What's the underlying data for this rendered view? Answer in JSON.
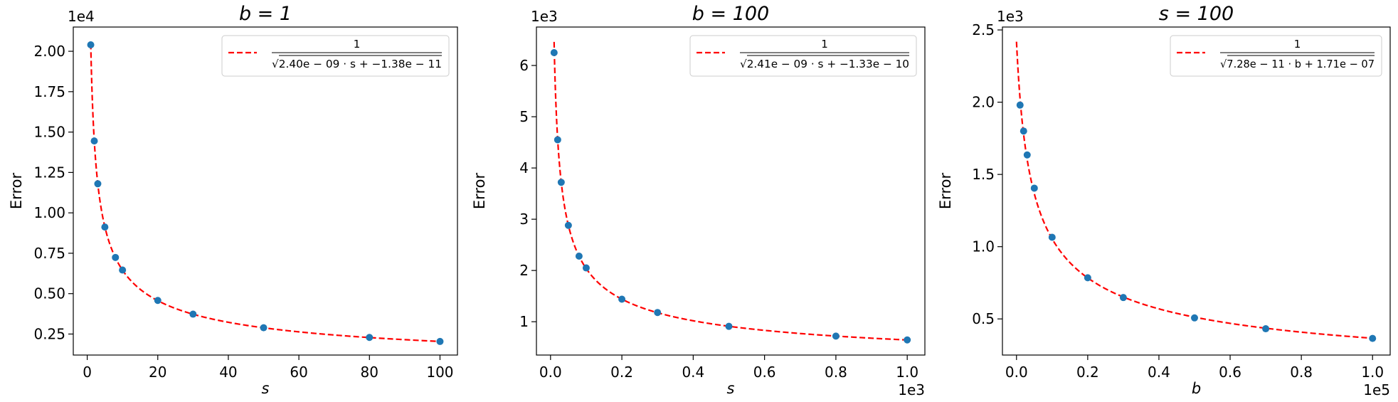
{
  "chart_data": [
    {
      "type": "scatter",
      "title": "b = 1",
      "xlabel": "s",
      "ylabel": "Error",
      "x_multiplier": "",
      "y_multiplier": "1e4",
      "xlim": [
        -3.95,
        104.95
      ],
      "ylim": [
        0.12,
        2.15
      ],
      "xticks": [
        0,
        20,
        40,
        60,
        80,
        100
      ],
      "xtick_labels": [
        "0",
        "20",
        "40",
        "60",
        "80",
        "100"
      ],
      "yticks": [
        0.25,
        0.5,
        0.75,
        1.0,
        1.25,
        1.5,
        1.75,
        2.0
      ],
      "ytick_labels": [
        "0.25",
        "0.50",
        "0.75",
        "1.00",
        "1.25",
        "1.50",
        "1.75",
        "2.00"
      ],
      "grid": false,
      "legend_position": "top-right",
      "series": [
        {
          "kind": "points",
          "color": "#1f77b4",
          "x": [
            1,
            2,
            3,
            5,
            8,
            10,
            20,
            30,
            50,
            80,
            100
          ],
          "y": [
            2.04,
            1.445,
            1.18,
            0.912,
            0.724,
            0.646,
            0.458,
            0.373,
            0.289,
            0.229,
            0.204
          ]
        },
        {
          "kind": "fit",
          "color": "#ff0000",
          "legend": {
            "numerator": "1",
            "denominator": "√2.40e − 09 · s + −1.38e − 11"
          },
          "model": {
            "a": 2.4e-09,
            "c": -1.38e-11,
            "scale": 10000.0
          },
          "x_range": [
            1,
            100
          ]
        }
      ]
    },
    {
      "type": "scatter",
      "title": "b = 100",
      "xlabel": "s",
      "ylabel": "Error",
      "x_multiplier": "1e3",
      "y_multiplier": "1e3",
      "xlim": [
        -0.0395,
        1.0495
      ],
      "ylim": [
        0.35,
        6.75
      ],
      "xticks": [
        0.0,
        0.2,
        0.4,
        0.6,
        0.8,
        1.0
      ],
      "xtick_labels": [
        "0.0",
        "0.2",
        "0.4",
        "0.6",
        "0.8",
        "1.0"
      ],
      "yticks": [
        1,
        2,
        3,
        4,
        5,
        6
      ],
      "ytick_labels": [
        "1",
        "2",
        "3",
        "4",
        "5",
        "6"
      ],
      "grid": false,
      "legend_position": "top-right",
      "series": [
        {
          "kind": "points",
          "color": "#1f77b4",
          "x": [
            0.01,
            0.02,
            0.03,
            0.05,
            0.08,
            0.1,
            0.2,
            0.3,
            0.5,
            0.8,
            1.0
          ],
          "y": [
            6.25,
            4.55,
            3.72,
            2.88,
            2.28,
            2.05,
            1.44,
            1.18,
            0.91,
            0.72,
            0.645
          ]
        },
        {
          "kind": "fit",
          "color": "#ff0000",
          "legend": {
            "numerator": "1",
            "denominator": "√2.41e − 09 · s + −1.33e − 10"
          },
          "model": {
            "a": 2.41e-09,
            "c": -1.33e-10,
            "scale": 1000.0
          },
          "x_range": [
            0.01,
            1.0
          ]
        }
      ]
    },
    {
      "type": "scatter",
      "title": "s = 100",
      "xlabel": "b",
      "ylabel": "Error",
      "x_multiplier": "1e5",
      "y_multiplier": "1e3",
      "xlim": [
        -0.0395,
        1.0495
      ],
      "ylim": [
        0.25,
        2.52
      ],
      "xticks": [
        0.0,
        0.2,
        0.4,
        0.6,
        0.8,
        1.0
      ],
      "xtick_labels": [
        "0.0",
        "0.2",
        "0.4",
        "0.6",
        "0.8",
        "1.0"
      ],
      "yticks": [
        0.5,
        1.0,
        1.5,
        2.0,
        2.5
      ],
      "ytick_labels": [
        "0.5",
        "1.0",
        "1.5",
        "2.0",
        "2.5"
      ],
      "grid": false,
      "legend_position": "top-right",
      "series": [
        {
          "kind": "points",
          "color": "#1f77b4",
          "x": [
            0.01,
            0.02,
            0.03,
            0.05,
            0.1,
            0.2,
            0.3,
            0.5,
            0.7,
            1.0
          ],
          "y": [
            1.98,
            1.8,
            1.635,
            1.405,
            1.065,
            0.785,
            0.648,
            0.507,
            0.432,
            0.365
          ]
        },
        {
          "kind": "fit",
          "color": "#ff0000",
          "legend": {
            "numerator": "1",
            "denominator": "√7.28e − 11 · b + 1.71e − 07"
          },
          "model": {
            "a": 7.28e-11,
            "c": 1.71e-07,
            "scale": 100000.0
          },
          "x_range": [
            0.0,
            1.0
          ]
        }
      ]
    }
  ]
}
